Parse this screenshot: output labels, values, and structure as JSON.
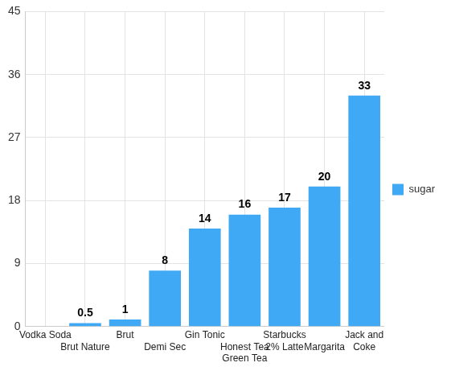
{
  "chart_data": {
    "type": "bar",
    "categories": [
      "Vodka Soda",
      "Brut Nature",
      "Brut",
      "Demi Sec",
      "Gin Tonic",
      "Honest Tea\nGreen Tea",
      "Starbucks\n2% Latte",
      "Margarita",
      "Jack and\nCoke"
    ],
    "series": [
      {
        "name": "sugar",
        "color": "#3fa9f5",
        "values": [
          0,
          0.5,
          1,
          8,
          14,
          16,
          17,
          20,
          33
        ],
        "value_labels": [
          null,
          "0.5",
          "1",
          "8",
          "14",
          "16",
          "17",
          "20",
          "33"
        ]
      }
    ],
    "ylim": [
      0,
      45
    ],
    "yticks": [
      0,
      9,
      18,
      27,
      36,
      45
    ],
    "grid": true,
    "legend": "right",
    "data_labels": true
  }
}
